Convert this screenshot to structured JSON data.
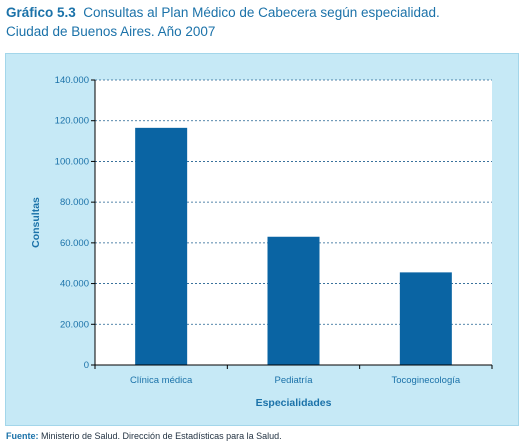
{
  "header": {
    "label": "Gráfico 5.3",
    "line1": "Consultas al Plan Médico de Cabecera según especialidad.",
    "line2": "Ciudad de Buenos Aires. Año 2007"
  },
  "footer": {
    "label": "Fuente:",
    "text": "Ministerio de Salud. Dirección de Estadísticas para la Salud."
  },
  "colors": {
    "bar": "#0a64a3",
    "axis_text": "#1b72a9",
    "panel_bg": "#c6e9f6",
    "plot_bg": "#ffffff",
    "grid": "#1f5f8f"
  },
  "chart_data": {
    "type": "bar",
    "categories": [
      "Clínica médica",
      "Pediatría",
      "Tocoginecología"
    ],
    "values": [
      116500,
      63000,
      45500
    ],
    "xlabel": "Especialidades",
    "ylabel": "Consultas",
    "ylim": [
      0,
      140000
    ],
    "yticks": [
      0,
      20000,
      40000,
      60000,
      80000,
      100000,
      120000,
      140000
    ],
    "ytick_labels": [
      "0",
      "20.000",
      "40.000",
      "60.000",
      "80.000",
      "100.000",
      "120.000",
      "140.000"
    ],
    "grid": true,
    "grid_style": "dashed",
    "legend": false
  }
}
